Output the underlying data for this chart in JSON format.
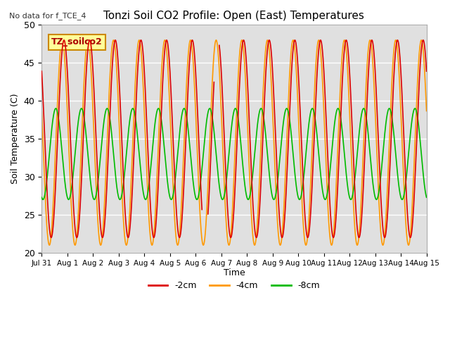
{
  "title": "Tonzi Soil CO2 Profile: Open (East) Temperatures",
  "no_data_label": "No data for f_TCE_4",
  "ylabel": "Soil Temperature (C)",
  "xlabel": "Time",
  "ylim": [
    20,
    50
  ],
  "xlim_days": [
    0,
    15
  ],
  "x_tick_labels": [
    "Jul 31",
    "Aug 1",
    "Aug 2",
    "Aug 3",
    "Aug 4",
    "Aug 5",
    "Aug 6",
    "Aug 7",
    "Aug 8",
    "Aug 9",
    "Aug 10",
    "Aug 11",
    "Aug 12",
    "Aug 13",
    "Aug 14",
    "Aug 15"
  ],
  "series_labels": [
    "-2cm",
    "-4cm",
    "-8cm"
  ],
  "colors": [
    "#dd0000",
    "#ff9900",
    "#00bb00"
  ],
  "background_color": "#e0e0e0",
  "legend_box_label": "TZ_soilco2",
  "legend_box_color": "#ffff99",
  "legend_box_edge": "#cc8800",
  "n_points": 3000,
  "period": 1.0,
  "mean_2cm": 35.0,
  "mean_4cm": 34.5,
  "mean_8cm": 33.0,
  "amp_2cm": 13.0,
  "amp_4cm": 13.5,
  "amp_8cm": 6.0,
  "phase_2cm": 0.62,
  "phase_4cm": 0.55,
  "phase_8cm": 0.3,
  "gap_start": 6.25,
  "gap_end": 6.92
}
